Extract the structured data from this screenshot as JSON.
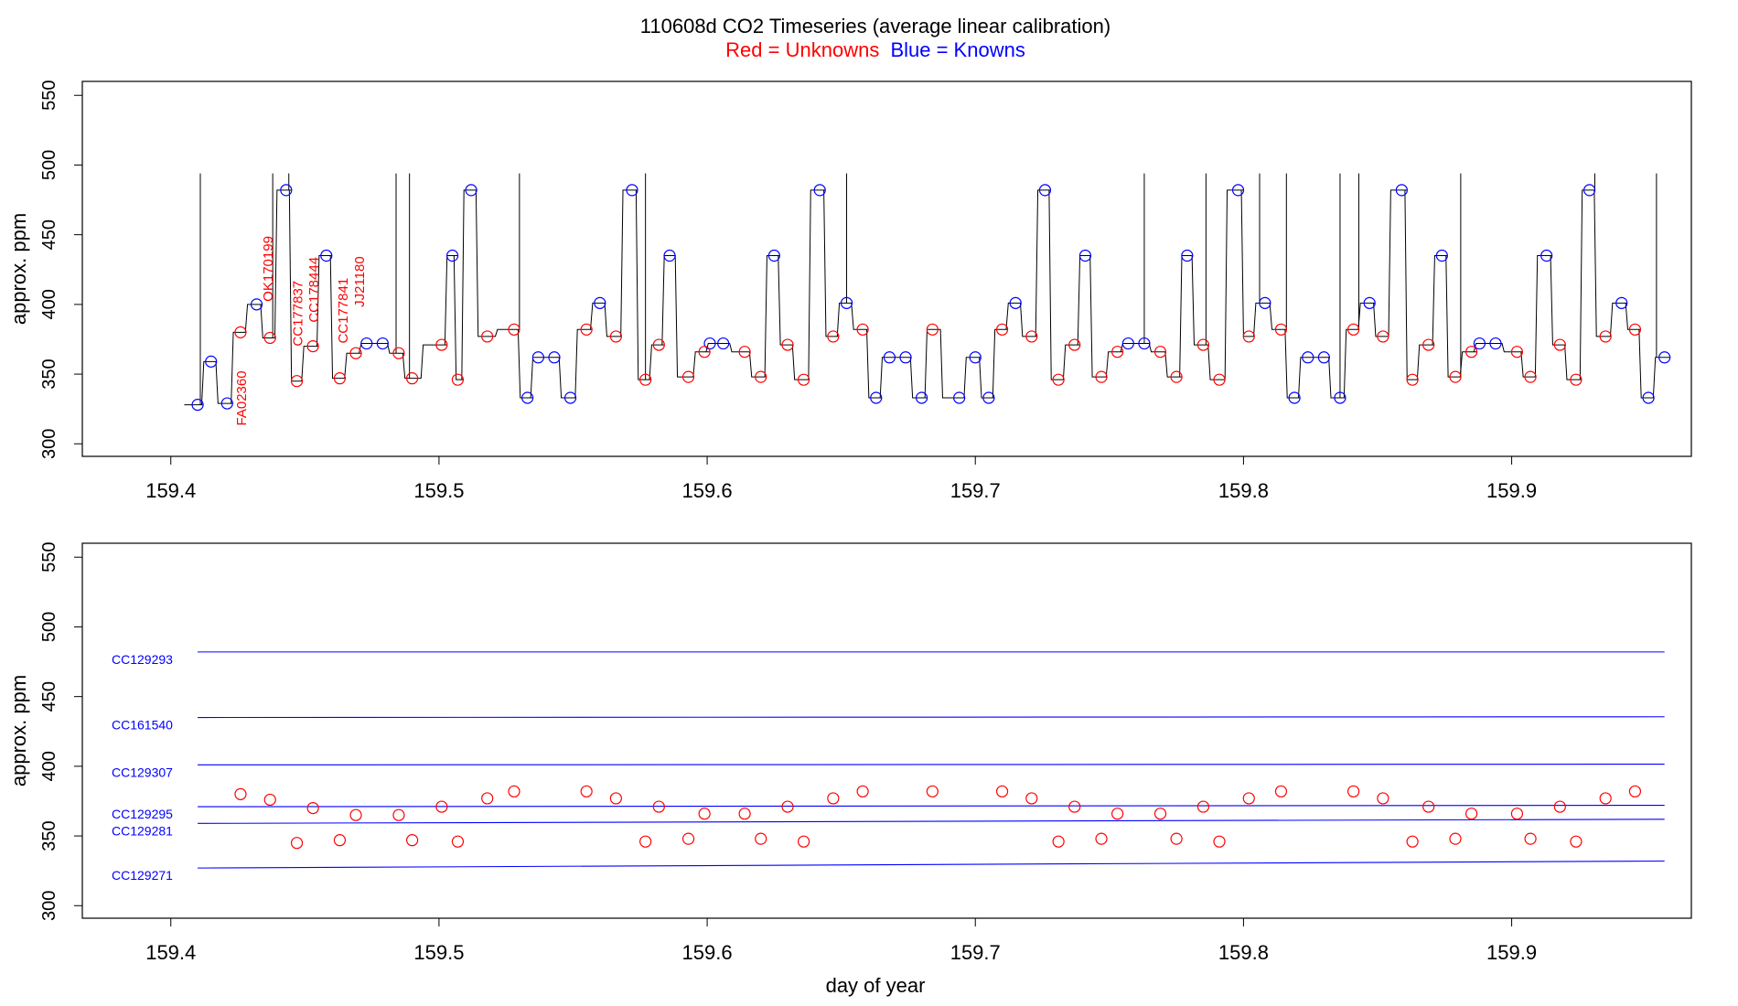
{
  "header": {
    "title": "110608d   CO2 Timeseries (average linear calibration)",
    "legend_red": "Red = Unknowns",
    "legend_blue": "Blue = Knowns"
  },
  "colors": {
    "unknown": "#ff0000",
    "known": "#0000ff",
    "trace": "#000000",
    "axis": "#000000"
  },
  "chart_data": [
    {
      "type": "line",
      "title": "110608d   CO2 Timeseries (average linear calibration)",
      "xlabel": "",
      "ylabel": "approx. ppm",
      "xlim": [
        159.367,
        159.967
      ],
      "ylim": [
        291,
        560
      ],
      "x_ticks": [
        159.4,
        159.5,
        159.6,
        159.7,
        159.8,
        159.9
      ],
      "x_tick_labels": [
        "159.4",
        "159.5",
        "159.6",
        "159.7",
        "159.8",
        "159.9"
      ],
      "y_ticks": [
        300,
        350,
        400,
        450,
        500,
        550
      ],
      "y_tick_labels": [
        "300",
        "350",
        "400",
        "450",
        "500",
        "550"
      ],
      "series": [
        {
          "name": "Knowns",
          "color": "#0000ff",
          "points": [
            [
              159.41,
              328
            ],
            [
              159.415,
              359
            ],
            [
              159.421,
              329
            ],
            [
              159.432,
              400
            ],
            [
              159.443,
              482
            ],
            [
              159.458,
              435
            ],
            [
              159.473,
              372
            ],
            [
              159.479,
              372
            ],
            [
              159.505,
              435
            ],
            [
              159.512,
              482
            ],
            [
              159.533,
              333
            ],
            [
              159.537,
              362
            ],
            [
              159.543,
              362
            ],
            [
              159.549,
              333
            ],
            [
              159.56,
              401
            ],
            [
              159.572,
              482
            ],
            [
              159.586,
              435
            ],
            [
              159.601,
              372
            ],
            [
              159.606,
              372
            ],
            [
              159.625,
              435
            ],
            [
              159.642,
              482
            ],
            [
              159.652,
              401
            ],
            [
              159.663,
              333
            ],
            [
              159.668,
              362
            ],
            [
              159.674,
              362
            ],
            [
              159.68,
              333
            ],
            [
              159.694,
              333
            ],
            [
              159.7,
              362
            ],
            [
              159.705,
              333
            ],
            [
              159.715,
              401
            ],
            [
              159.726,
              482
            ],
            [
              159.741,
              435
            ],
            [
              159.757,
              372
            ],
            [
              159.763,
              372
            ],
            [
              159.779,
              435
            ],
            [
              159.798,
              482
            ],
            [
              159.808,
              401
            ],
            [
              159.819,
              333
            ],
            [
              159.824,
              362
            ],
            [
              159.83,
              362
            ],
            [
              159.836,
              333
            ],
            [
              159.847,
              401
            ],
            [
              159.859,
              482
            ],
            [
              159.874,
              435
            ],
            [
              159.888,
              372
            ],
            [
              159.894,
              372
            ],
            [
              159.913,
              435
            ],
            [
              159.929,
              482
            ],
            [
              159.941,
              401
            ],
            [
              159.951,
              333
            ],
            [
              159.957,
              362
            ]
          ]
        },
        {
          "name": "Unknowns",
          "color": "#ff0000",
          "points": [
            [
              159.426,
              380
            ],
            [
              159.437,
              376
            ],
            [
              159.447,
              345
            ],
            [
              159.453,
              370
            ],
            [
              159.463,
              347
            ],
            [
              159.469,
              365
            ],
            [
              159.485,
              365
            ],
            [
              159.49,
              347
            ],
            [
              159.501,
              371
            ],
            [
              159.507,
              346
            ],
            [
              159.518,
              377
            ],
            [
              159.528,
              382
            ],
            [
              159.555,
              382
            ],
            [
              159.566,
              377
            ],
            [
              159.577,
              346
            ],
            [
              159.582,
              371
            ],
            [
              159.593,
              348
            ],
            [
              159.599,
              366
            ],
            [
              159.614,
              366
            ],
            [
              159.62,
              348
            ],
            [
              159.63,
              371
            ],
            [
              159.636,
              346
            ],
            [
              159.647,
              377
            ],
            [
              159.658,
              382
            ],
            [
              159.684,
              382
            ],
            [
              159.71,
              382
            ],
            [
              159.721,
              377
            ],
            [
              159.731,
              346
            ],
            [
              159.737,
              371
            ],
            [
              159.747,
              348
            ],
            [
              159.753,
              366
            ],
            [
              159.769,
              366
            ],
            [
              159.775,
              348
            ],
            [
              159.785,
              371
            ],
            [
              159.791,
              346
            ],
            [
              159.802,
              377
            ],
            [
              159.814,
              382
            ],
            [
              159.841,
              382
            ],
            [
              159.852,
              377
            ],
            [
              159.863,
              346
            ],
            [
              159.869,
              371
            ],
            [
              159.879,
              348
            ],
            [
              159.885,
              366
            ],
            [
              159.902,
              366
            ],
            [
              159.907,
              348
            ],
            [
              159.918,
              371
            ],
            [
              159.924,
              346
            ],
            [
              159.935,
              377
            ],
            [
              159.946,
              382
            ]
          ]
        }
      ],
      "spikes_x": [
        159.411,
        159.438,
        159.444,
        159.484,
        159.489,
        159.53,
        159.577,
        159.652,
        159.763,
        159.786,
        159.806,
        159.816,
        159.836,
        159.843,
        159.881,
        159.931,
        159.954
      ],
      "spike_top": 494,
      "annotations": [
        {
          "text": "FA02360",
          "x": 159.428,
          "y": 313
        },
        {
          "text": "OK170199",
          "x": 159.438,
          "y": 402
        },
        {
          "text": "CC177837",
          "x": 159.449,
          "y": 370
        },
        {
          "text": "CC178444",
          "x": 159.455,
          "y": 387
        },
        {
          "text": "CC177841",
          "x": 159.466,
          "y": 372
        },
        {
          "text": "JJ21180",
          "x": 159.472,
          "y": 398
        }
      ]
    },
    {
      "type": "scatter",
      "title": "",
      "xlabel": "day of year",
      "ylabel": "approx. ppm",
      "xlim": [
        159.367,
        159.967
      ],
      "ylim": [
        291,
        560
      ],
      "x_ticks": [
        159.4,
        159.5,
        159.6,
        159.7,
        159.8,
        159.9
      ],
      "x_tick_labels": [
        "159.4",
        "159.5",
        "159.6",
        "159.7",
        "159.8",
        "159.9"
      ],
      "y_ticks": [
        300,
        350,
        400,
        450,
        500,
        550
      ],
      "y_tick_labels": [
        "300",
        "350",
        "400",
        "450",
        "500",
        "550"
      ],
      "reference_lines": [
        {
          "name": "CC129293",
          "x": [
            159.41,
            159.957
          ],
          "y": [
            482,
            482
          ]
        },
        {
          "name": "CC161540",
          "x": [
            159.41,
            159.957
          ],
          "y": [
            435,
            435.5
          ]
        },
        {
          "name": "CC129307",
          "x": [
            159.41,
            159.957
          ],
          "y": [
            401,
            401.5
          ]
        },
        {
          "name": "CC129295",
          "x": [
            159.41,
            159.957
          ],
          "y": [
            371,
            372
          ]
        },
        {
          "name": "CC129281",
          "x": [
            159.41,
            159.957
          ],
          "y": [
            359,
            362
          ]
        },
        {
          "name": "CC129271",
          "x": [
            159.41,
            159.957
          ],
          "y": [
            327,
            332
          ]
        }
      ],
      "points": [
        [
          159.426,
          380
        ],
        [
          159.437,
          376
        ],
        [
          159.447,
          345
        ],
        [
          159.453,
          370
        ],
        [
          159.463,
          347
        ],
        [
          159.469,
          365
        ],
        [
          159.485,
          365
        ],
        [
          159.49,
          347
        ],
        [
          159.501,
          371
        ],
        [
          159.507,
          346
        ],
        [
          159.518,
          377
        ],
        [
          159.528,
          382
        ],
        [
          159.555,
          382
        ],
        [
          159.566,
          377
        ],
        [
          159.577,
          346
        ],
        [
          159.582,
          371
        ],
        [
          159.593,
          348
        ],
        [
          159.599,
          366
        ],
        [
          159.614,
          366
        ],
        [
          159.62,
          348
        ],
        [
          159.63,
          371
        ],
        [
          159.636,
          346
        ],
        [
          159.647,
          377
        ],
        [
          159.658,
          382
        ],
        [
          159.684,
          382
        ],
        [
          159.71,
          382
        ],
        [
          159.721,
          377
        ],
        [
          159.731,
          346
        ],
        [
          159.737,
          371
        ],
        [
          159.747,
          348
        ],
        [
          159.753,
          366
        ],
        [
          159.769,
          366
        ],
        [
          159.775,
          348
        ],
        [
          159.785,
          371
        ],
        [
          159.791,
          346
        ],
        [
          159.802,
          377
        ],
        [
          159.814,
          382
        ],
        [
          159.841,
          382
        ],
        [
          159.852,
          377
        ],
        [
          159.863,
          346
        ],
        [
          159.869,
          371
        ],
        [
          159.879,
          348
        ],
        [
          159.885,
          366
        ],
        [
          159.902,
          366
        ],
        [
          159.907,
          348
        ],
        [
          159.918,
          371
        ],
        [
          159.924,
          346
        ],
        [
          159.935,
          377
        ],
        [
          159.946,
          382
        ]
      ]
    }
  ]
}
